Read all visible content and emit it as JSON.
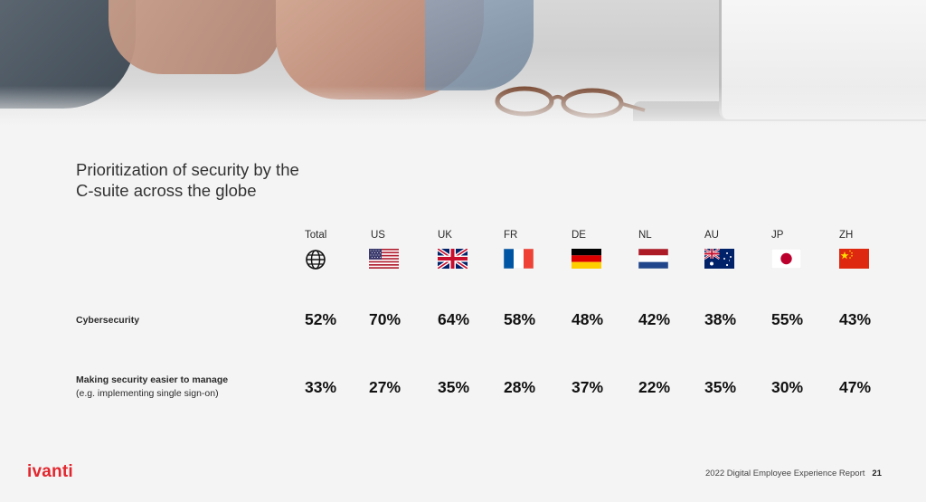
{
  "title": "Prioritization of security by the C-suite across the globe",
  "columns": [
    {
      "label": "Total",
      "icon": "globe-icon"
    },
    {
      "label": "US",
      "icon": "us-flag-icon"
    },
    {
      "label": "UK",
      "icon": "uk-flag-icon"
    },
    {
      "label": "FR",
      "icon": "france-flag-icon"
    },
    {
      "label": "DE",
      "icon": "germany-flag-icon"
    },
    {
      "label": "NL",
      "icon": "netherlands-flag-icon"
    },
    {
      "label": "AU",
      "icon": "australia-flag-icon"
    },
    {
      "label": "JP",
      "icon": "japan-flag-icon"
    },
    {
      "label": "ZH",
      "icon": "china-flag-icon"
    }
  ],
  "rows": [
    {
      "label": "Cybersecurity",
      "sublabel": "",
      "values": [
        "52%",
        "70%",
        "64%",
        "58%",
        "48%",
        "42%",
        "38%",
        "55%",
        "43%"
      ]
    },
    {
      "label": "Making security easier to manage",
      "sublabel": "(e.g. implementing single sign-on)",
      "values": [
        "33%",
        "27%",
        "35%",
        "28%",
        "37%",
        "22%",
        "35%",
        "30%",
        "47%"
      ]
    }
  ],
  "brand": {
    "logo": "ivanti",
    "accent": "#e3262e"
  },
  "footer": {
    "report": "2022 Digital Employee Experience Report",
    "page": "21"
  }
}
